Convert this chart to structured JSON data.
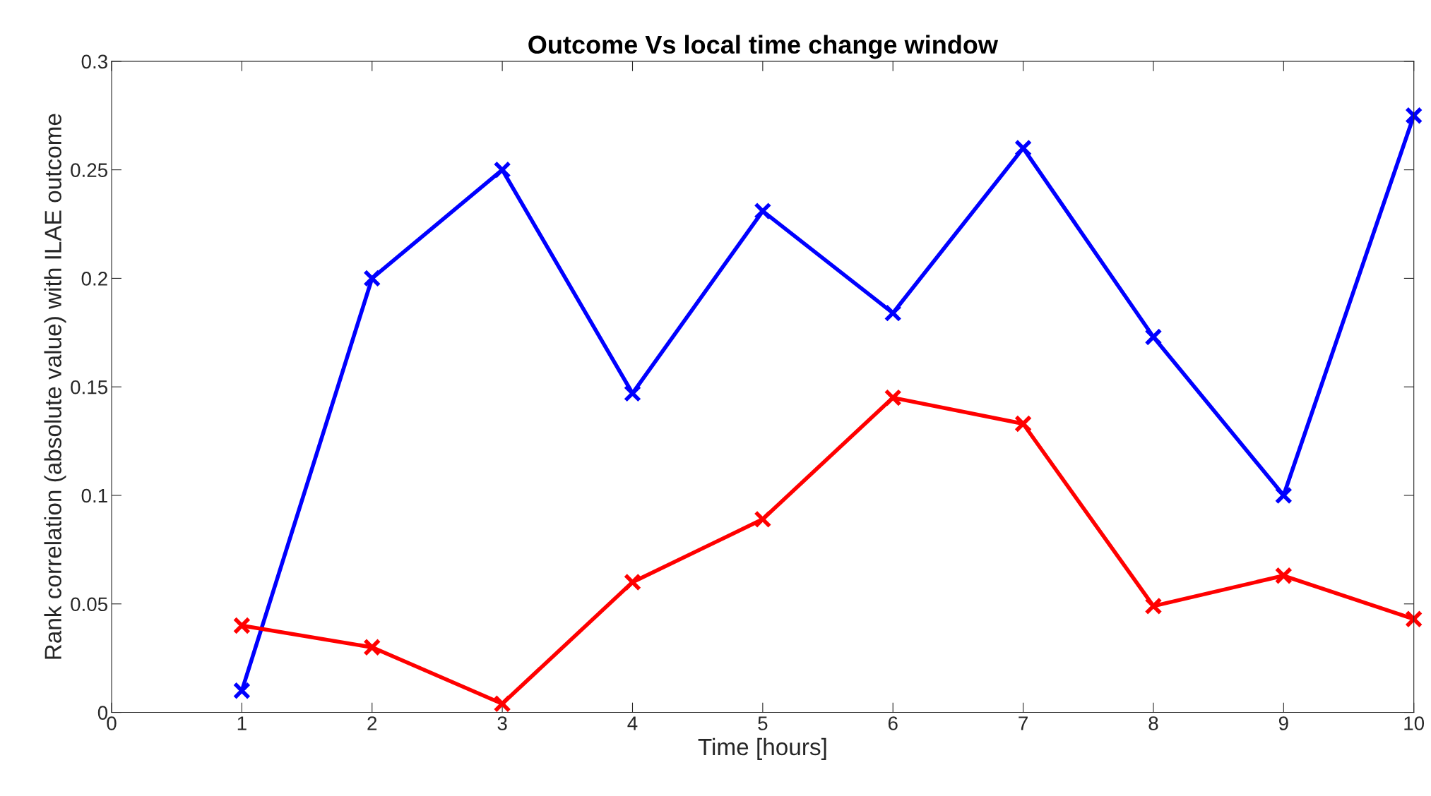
{
  "chart_data": {
    "type": "line",
    "title": "Outcome Vs local time change window",
    "xlabel": "Time [hours]",
    "ylabel": "Rank correlation (absolute value) with ILAE outcome",
    "x": [
      1,
      2,
      3,
      4,
      5,
      6,
      7,
      8,
      9,
      10
    ],
    "series": [
      {
        "color": "#0000ff",
        "values": [
          0.01,
          0.2,
          0.25,
          0.147,
          0.231,
          0.184,
          0.26,
          0.173,
          0.1,
          0.275
        ]
      },
      {
        "color": "#ff0000",
        "values": [
          0.04,
          0.03,
          0.004,
          0.06,
          0.089,
          0.145,
          0.133,
          0.049,
          0.063,
          0.043
        ]
      }
    ],
    "xlim": [
      0,
      10
    ],
    "xticks": [
      0,
      1,
      2,
      3,
      4,
      5,
      6,
      7,
      8,
      9,
      10
    ],
    "ylim": [
      0,
      0.3
    ],
    "yticks": [
      0,
      0.05,
      0.1,
      0.15,
      0.2,
      0.25,
      0.3
    ],
    "grid": false,
    "legend": false,
    "marker": "cross",
    "line_style": "solid"
  }
}
